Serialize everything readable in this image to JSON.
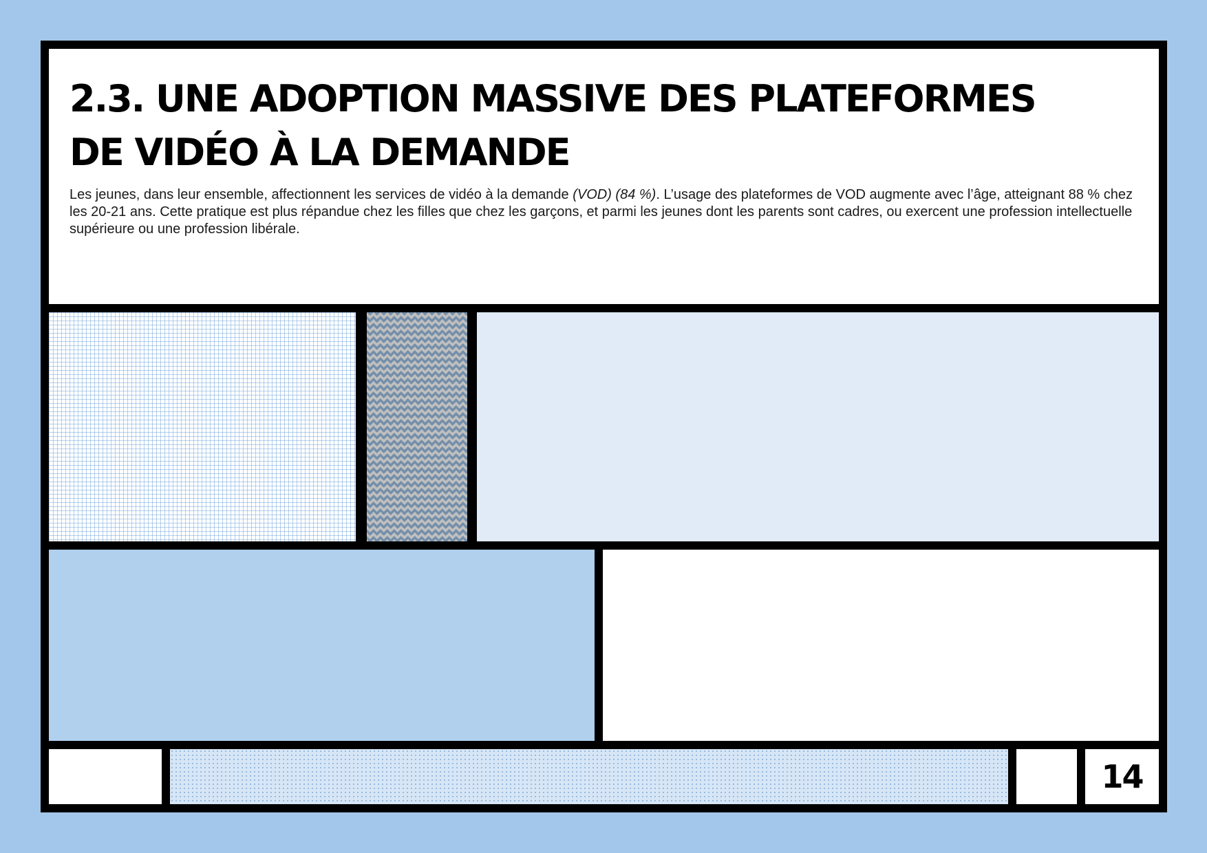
{
  "header": {
    "title_line1": "2.3. UNE ADOPTION MASSIVE DES PLATEFORMES",
    "title_line2": "DE VIDÉO À LA DEMANDE",
    "intro_part1": "Les jeunes, dans leur ensemble, affectionnent les services de vidéo à la demande ",
    "intro_emphasis": "(VOD) (84 %)",
    "intro_part2": ". L’usage des plateformes de VOD augmente avec l’âge, atteignant 88 % chez les 20-21 ans. Cette pratique est plus répandue chez les filles que chez les garçons, et parmi les jeunes dont les parents sont cadres, ou exercent une profession intellectuelle supérieure ou une profession libérale."
  },
  "footer": {
    "page_number": "14"
  },
  "colors": {
    "page_background": "#a2c7ea",
    "frame": "#000000",
    "light_blue_panel": "#e1ebf7",
    "mid_blue_panel": "#b0d0ee",
    "dotted_panel": "#d7e6f6"
  }
}
